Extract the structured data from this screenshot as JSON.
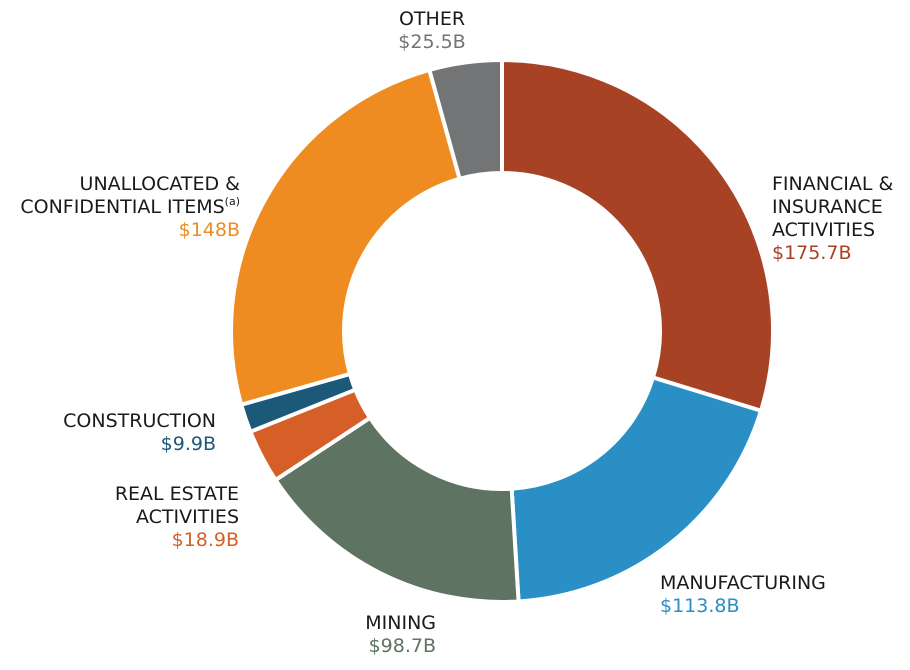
{
  "chart_data": {
    "type": "pie",
    "title": "",
    "donut": true,
    "slices": [
      {
        "name": "FINANCIAL & INSURANCE ACTIVITIES",
        "label_lines": [
          "FINANCIAL &",
          "INSURANCE",
          "ACTIVITIES"
        ],
        "value": 175.7,
        "value_label": "$175.7B",
        "color": "#a84224"
      },
      {
        "name": "MANUFACTURING",
        "label_lines": [
          "MANUFACTURING"
        ],
        "value": 113.8,
        "value_label": "$113.8B",
        "color": "#2a8fc4"
      },
      {
        "name": "MINING",
        "label_lines": [
          "MINING"
        ],
        "value": 98.7,
        "value_label": "$98.7B",
        "color": "#5e7361"
      },
      {
        "name": "REAL ESTATE ACTIVITIES",
        "label_lines": [
          "REAL ESTATE",
          "ACTIVITIES"
        ],
        "value": 18.9,
        "value_label": "$18.9B",
        "color": "#d65f28"
      },
      {
        "name": "CONSTRUCTION",
        "label_lines": [
          "CONSTRUCTION"
        ],
        "value": 9.9,
        "value_label": "$9.9B",
        "color": "#1c5878"
      },
      {
        "name": "UNALLOCATED & CONFIDENTIAL ITEMS",
        "label_lines": [
          "UNALLOCATED &",
          "CONFIDENTIAL ITEMS"
        ],
        "superscript": "(a)",
        "value": 148,
        "value_label": "$148B",
        "color": "#ee8c22"
      },
      {
        "name": "OTHER",
        "label_lines": [
          "OTHER"
        ],
        "value": 25.5,
        "value_label": "$25.5B",
        "color": "#737475"
      }
    ]
  }
}
